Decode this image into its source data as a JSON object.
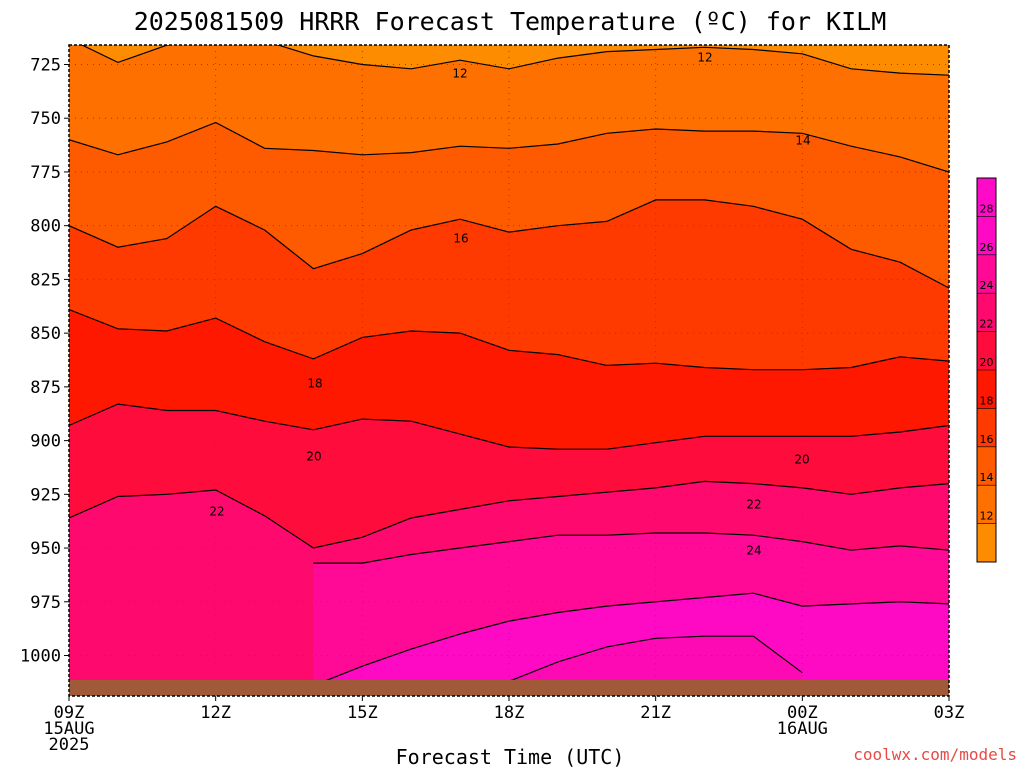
{
  "title": "2025081509 HRRR Forecast Temperature (ºC) for KILM",
  "credit": "coolwx.com/models",
  "xlabel": "Forecast Time (UTC)",
  "x_tick_labels": [
    {
      "lines": [
        "09Z",
        "15AUG",
        "2025"
      ]
    },
    {
      "lines": [
        "12Z"
      ]
    },
    {
      "lines": [
        "15Z"
      ]
    },
    {
      "lines": [
        "18Z"
      ]
    },
    {
      "lines": [
        "21Z"
      ]
    },
    {
      "lines": [
        "00Z",
        "16AUG"
      ]
    },
    {
      "lines": [
        "03Z"
      ]
    }
  ],
  "y_tick_labels": [
    "725",
    "750",
    "775",
    "800",
    "825",
    "850",
    "875",
    "900",
    "925",
    "950",
    "975",
    "1000"
  ],
  "colorbar_labels": [
    "28",
    "26",
    "24",
    "22",
    "20",
    "18",
    "16",
    "14",
    "12"
  ],
  "contour_labels": [
    "12",
    "12",
    "14",
    "16",
    "18",
    "20",
    "20",
    "22",
    "22",
    "24"
  ],
  "colors": {
    "c12": "#fe8c00",
    "c14": "#fe7000",
    "c16": "#fe5a00",
    "c18": "#fe3a00",
    "c20": "#fe1800",
    "c22": "#fe0c3c",
    "c24": "#fe0a6e",
    "c26": "#fe0a96",
    "c28": "#fe0ac4",
    "ground": "#a05a3a"
  },
  "chart_data": {
    "type": "contour",
    "title": "2025081509 HRRR Forecast Temperature (ºC) for KILM",
    "xlabel": "Forecast Time (UTC)",
    "ylabel": "",
    "x_forecast_hours": [
      0,
      1,
      2,
      3,
      4,
      5,
      6,
      7,
      8,
      9,
      10,
      11,
      12,
      13,
      14,
      15,
      16,
      17,
      18
    ],
    "x_ticks": [
      "09Z 15AUG 2025",
      "12Z",
      "15Z",
      "18Z",
      "21Z",
      "00Z 16AUG",
      "03Z"
    ],
    "y_pressure_hPa_range": [
      1015,
      713
    ],
    "y_ticks_hPa": [
      725,
      750,
      775,
      800,
      825,
      850,
      875,
      900,
      925,
      950,
      975,
      1000
    ],
    "shading_levels_C": [
      12,
      14,
      16,
      18,
      20,
      22,
      24,
      26,
      28
    ],
    "contour_interval_C": 2,
    "isotherms": [
      {
        "temp_C": 12,
        "pressure_hPa": [
          713,
          724,
          716,
          713,
          714,
          721,
          725,
          727,
          723,
          727,
          722,
          719,
          718,
          717,
          718,
          720,
          727,
          729,
          730
        ]
      },
      {
        "temp_C": 14,
        "pressure_hPa": [
          760,
          767,
          761,
          752,
          764,
          765,
          767,
          766,
          763,
          764,
          762,
          757,
          755,
          756,
          756,
          757,
          763,
          768,
          775
        ]
      },
      {
        "temp_C": 16,
        "pressure_hPa": [
          800,
          810,
          806,
          791,
          802,
          820,
          813,
          802,
          797,
          803,
          800,
          798,
          788,
          788,
          791,
          797,
          811,
          817,
          829
        ]
      },
      {
        "temp_C": 18,
        "pressure_hPa": [
          839,
          848,
          849,
          843,
          854,
          862,
          852,
          849,
          850,
          858,
          860,
          865,
          864,
          866,
          867,
          867,
          866,
          861,
          863
        ]
      },
      {
        "temp_C": 20,
        "pressure_hPa": [
          893,
          883,
          886,
          886,
          891,
          895,
          890,
          891,
          897,
          903,
          904,
          904,
          901,
          898,
          898,
          898,
          898,
          896,
          893
        ]
      },
      {
        "temp_C": 22,
        "pressure_hPa": [
          936,
          926,
          925,
          923,
          935,
          950,
          945,
          936,
          932,
          928,
          926,
          924,
          922,
          919,
          920,
          922,
          925,
          922,
          920
        ]
      },
      {
        "temp_C": 24,
        "pressure_hPa": [
          null,
          null,
          null,
          null,
          null,
          957,
          957,
          953,
          950,
          947,
          944,
          944,
          943,
          943,
          944,
          947,
          951,
          949,
          951
        ]
      },
      {
        "temp_C": 26,
        "pressure_hPa": [
          null,
          null,
          null,
          null,
          null,
          1014,
          1005,
          997,
          990,
          984,
          980,
          977,
          975,
          973,
          971,
          977,
          976,
          975,
          976
        ]
      },
      {
        "temp_C": 28,
        "pressure_hPa": [
          null,
          null,
          null,
          null,
          null,
          null,
          null,
          null,
          null,
          1012,
          1003,
          996,
          992,
          991,
          991,
          1008,
          null,
          null,
          null
        ]
      }
    ],
    "surface_temperature_approx_C": 25
  }
}
